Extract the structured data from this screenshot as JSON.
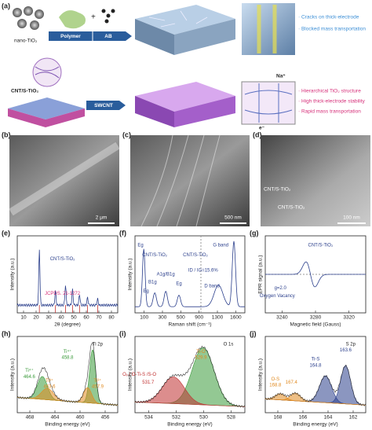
{
  "panel_a": {
    "label": "(a)",
    "top": {
      "material": "nano-TiO₂",
      "steps": [
        "Polymer",
        "AB"
      ],
      "notes": [
        "· Cracks on thick-electrode",
        "· Blocked mass transportation"
      ]
    },
    "bottom": {
      "material": "CNT/S-TiO₂",
      "step": "SWCNT",
      "ions": [
        "Na⁺",
        "e⁻"
      ],
      "notes": [
        "· Hierarchical TiO₂ structure",
        "· High thick-electrode stability",
        "· Rapid mass transportation"
      ]
    }
  },
  "panel_b": {
    "label": "(b)",
    "scale": "2 μm"
  },
  "panel_c": {
    "label": "(c)",
    "scale": "500 nm"
  },
  "panel_d": {
    "label": "(d)",
    "scale": "100 nm",
    "annotations": [
      "CNT/S-TiO₂",
      "CNT/S-TiO₂"
    ]
  },
  "plots": [
    {
      "label": "(e)",
      "xlabel": "2θ (degree)",
      "ylabel": "Intensity (a.u.)",
      "xticks": [
        "10",
        "20",
        "30",
        "40",
        "50",
        "60",
        "70",
        "80"
      ],
      "annotations": [
        "CNT/S-TiO₂",
        "JCPDS. 21-1272"
      ]
    },
    {
      "label": "(f)",
      "xlabel": "Raman shift (cm⁻¹)",
      "ylabel": "Intensity (a.u.)",
      "xticks": [
        "100",
        "300",
        "500",
        "900",
        "1300",
        "1600"
      ],
      "annotations": [
        "Eg",
        "Eg",
        "B1g",
        "A1g/B1g",
        "Eg",
        "CNT/S-TiO₂",
        "CNT/S-TiO₂",
        "G band",
        "D band",
        "ID / IG=15.6%"
      ]
    },
    {
      "label": "(g)",
      "xlabel": "Magnetic field (Gauss)",
      "ylabel": "EPR signal (a.u.)",
      "xticks": [
        "3240",
        "3280",
        "3320"
      ],
      "annotations": [
        "CNT/S-TiO₂",
        "g=2.0",
        "Oxygen Vacancy"
      ]
    },
    {
      "label": "(h)",
      "xlabel": "Binding energy (eV)",
      "ylabel": "Intensity (a.u.)",
      "xticks": [
        "468",
        "464",
        "460",
        "456"
      ],
      "annotations": [
        "Ti 2p",
        "Ti⁴⁺",
        "464.6",
        "Ti³⁺",
        "463.6",
        "Ti⁴⁺",
        "458.8",
        "Ti³⁺",
        "457.9"
      ]
    },
    {
      "label": "(i)",
      "xlabel": "Binding energy (eV)",
      "ylabel": "Intensity (a.u.)",
      "xticks": [
        "534",
        "532",
        "530",
        "528"
      ],
      "annotations": [
        "O 1s",
        "Oᵥ / O-Ti-S /S-O",
        "531.7",
        "Ti-O",
        "529.9"
      ]
    },
    {
      "label": "(j)",
      "xlabel": "Binding energy (eV)",
      "ylabel": "Intensity (a.u.)",
      "xticks": [
        "168",
        "166",
        "164",
        "162"
      ],
      "annotations": [
        "S 2p",
        "O-S",
        "168.8",
        "167.4",
        "Ti-S",
        "164.8",
        "163.6"
      ]
    }
  ]
}
